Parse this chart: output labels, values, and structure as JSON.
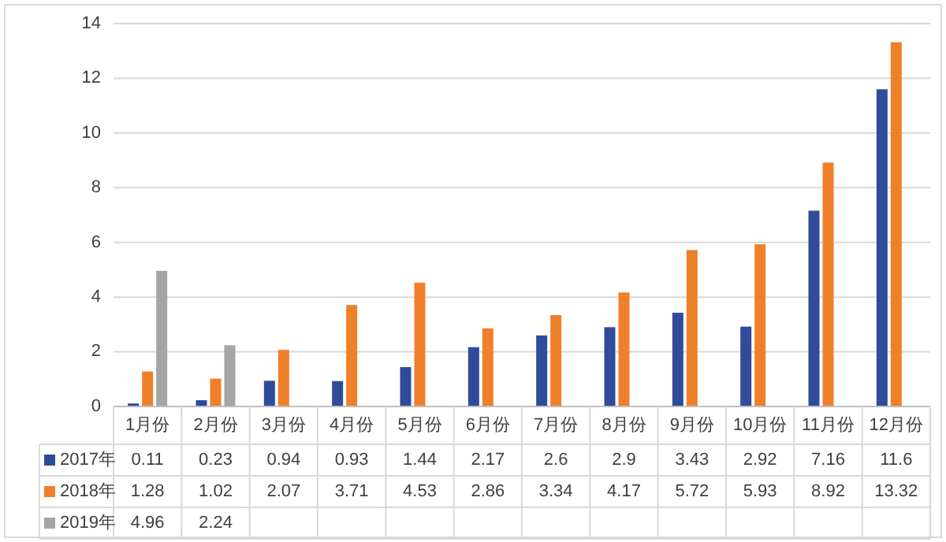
{
  "chart_data": {
    "type": "bar",
    "categories": [
      "1月份",
      "2月份",
      "3月份",
      "4月份",
      "5月份",
      "6月份",
      "7月份",
      "8月份",
      "9月份",
      "10月份",
      "11月份",
      "12月份"
    ],
    "series": [
      {
        "name": "2017年",
        "color": "#2f4b9a",
        "values": [
          0.11,
          0.23,
          0.94,
          0.93,
          1.44,
          2.17,
          2.6,
          2.9,
          3.43,
          2.92,
          7.16,
          11.6
        ]
      },
      {
        "name": "2018年",
        "color": "#f07f2a",
        "values": [
          1.28,
          1.02,
          2.07,
          3.71,
          4.53,
          2.86,
          3.34,
          4.17,
          5.72,
          5.93,
          8.92,
          13.32
        ]
      },
      {
        "name": "2019年",
        "color": "#a5a5a5",
        "values": [
          4.96,
          2.24,
          null,
          null,
          null,
          null,
          null,
          null,
          null,
          null,
          null,
          null
        ]
      }
    ],
    "ylim": [
      0,
      14
    ],
    "yticks": [
      0,
      2,
      4,
      6,
      8,
      10,
      12,
      14
    ],
    "grid": "y",
    "legend": "bottom",
    "data_labels": true
  }
}
